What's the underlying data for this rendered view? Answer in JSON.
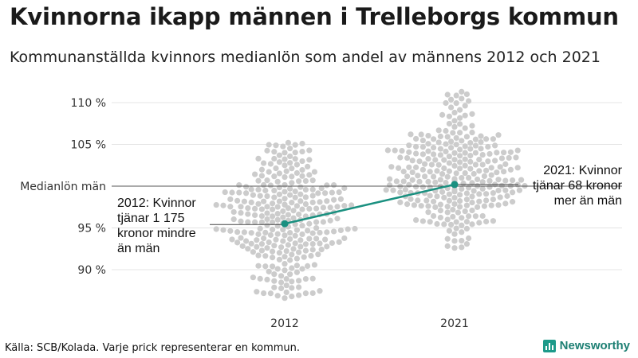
{
  "title": "Kvinnorna ikapp männen i Trelleborgs kommun",
  "subtitle": "Kommunanställda kvinnors medianlön som andel av männens 2012 och 2021",
  "footer": "Källa: SCB/Kolada. Varje prick representerar en kommun.",
  "brand": "Newsworthy",
  "colors": {
    "highlight": "#1a9080",
    "dots": "#cccccc",
    "grid": "#e4e4e4",
    "reference": "#555555"
  },
  "chart_data": {
    "type": "scatter",
    "ylim": [
      85.5,
      112
    ],
    "yticks": [
      90,
      95,
      105,
      110
    ],
    "ytick_labels": [
      "90 %",
      "95 %",
      "105 %",
      "110 %"
    ],
    "reference_line": {
      "value": 100,
      "label": "Medianlön män"
    },
    "categories": [
      "2012",
      "2021"
    ],
    "distributions": [
      {
        "category": "2012",
        "min": 86.6,
        "max": 105.2,
        "median": 95.3,
        "spread": 9.5,
        "count": 290
      },
      {
        "category": "2021",
        "min": 92.6,
        "max": 111.3,
        "median": 101.2,
        "spread": 7.8,
        "count": 290
      }
    ],
    "highlight": {
      "name": "Trelleborg",
      "values": [
        {
          "x": "2012",
          "y": 95.5
        },
        {
          "x": "2021",
          "y": 100.2
        }
      ]
    },
    "annotations": [
      {
        "category": "2012",
        "lines": [
          "2012: Kvinnor",
          "tjänar 1 175",
          "kronor mindre",
          "än män"
        ]
      },
      {
        "category": "2021",
        "lines": [
          "2021: Kvinnor",
          "tjänar 68 kronor",
          "mer än män"
        ]
      }
    ]
  }
}
